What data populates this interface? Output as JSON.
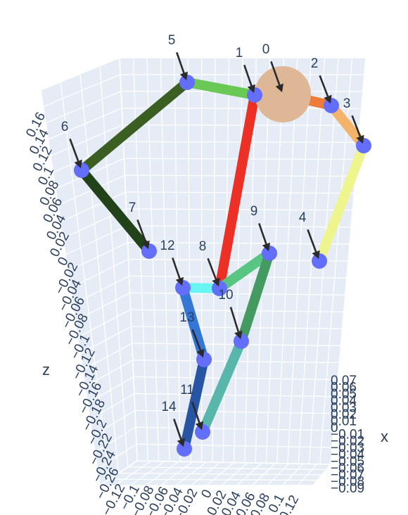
{
  "chart_data": {
    "type": "scatter3d",
    "title": "",
    "axes": {
      "x": {
        "label": "x",
        "ticks": [
          "0.07",
          "0.06",
          "0.05",
          "0.04",
          "0.03",
          "0.02",
          "0.01",
          "0",
          "−0.01",
          "−0.02",
          "−0.03",
          "−0.04",
          "−0.05",
          "−0.06",
          "−0.07",
          "−0.08",
          "−0.09"
        ]
      },
      "y": {
        "label": "",
        "ticks": [
          "−0.12",
          "−0.1",
          "−0.08",
          "−0.06",
          "−0.04",
          "−0.02",
          "0",
          "0.02",
          "0.04",
          "0.06",
          "0.08",
          "0.1",
          "0.12"
        ]
      },
      "z": {
        "label": "z",
        "ticks": [
          "0.16",
          "0.14",
          "0.12",
          "0.1",
          "0.08",
          "0.06",
          "0.04",
          "0.02",
          "0",
          "−0.02",
          "−0.04",
          "−0.06",
          "−0.08",
          "−0.1",
          "−0.12",
          "−0.14",
          "−0.16",
          "−0.18",
          "−0.2",
          "−0.22",
          "−0.24",
          "−0.26"
        ]
      }
    },
    "background_color": "#e5ecf6",
    "grid": true,
    "head": {
      "label": "0",
      "color": "#deb896"
    },
    "joints": [
      {
        "label": "0"
      },
      {
        "label": "1"
      },
      {
        "label": "2"
      },
      {
        "label": "3"
      },
      {
        "label": "4"
      },
      {
        "label": "5"
      },
      {
        "label": "6"
      },
      {
        "label": "7"
      },
      {
        "label": "8"
      },
      {
        "label": "9"
      },
      {
        "label": "10"
      },
      {
        "label": "11"
      },
      {
        "label": "12"
      },
      {
        "label": "13"
      },
      {
        "label": "14"
      }
    ],
    "joint_color": "#636efa",
    "bones": [
      {
        "from": "0",
        "to": "2",
        "color": "#ef7b3a"
      },
      {
        "from": "2",
        "to": "3",
        "color": "#f4b36b"
      },
      {
        "from": "3",
        "to": "4",
        "color": "#eef58c"
      },
      {
        "from": "1",
        "to": "5",
        "color": "#6ac955"
      },
      {
        "from": "5",
        "to": "6",
        "color": "#3b5f22"
      },
      {
        "from": "6",
        "to": "7",
        "color": "#22421a"
      },
      {
        "from": "1",
        "to": "8",
        "color": "#ec3025"
      },
      {
        "from": "8",
        "to": "12",
        "color": "#69f5f2"
      },
      {
        "from": "12",
        "to": "13",
        "color": "#3376d6"
      },
      {
        "from": "13",
        "to": "14",
        "color": "#2754a3"
      },
      {
        "from": "8",
        "to": "9",
        "color": "#58c582"
      },
      {
        "from": "9",
        "to": "10",
        "color": "#459a62"
      },
      {
        "from": "10",
        "to": "11",
        "color": "#58b6ab"
      }
    ]
  }
}
